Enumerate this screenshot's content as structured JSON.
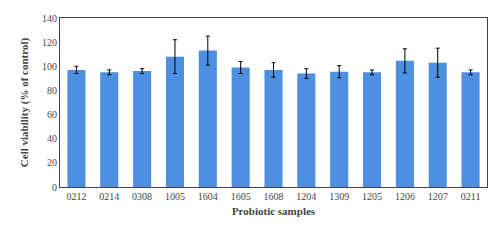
{
  "chart_data": {
    "type": "bar",
    "categories": [
      "0212",
      "0214",
      "0308",
      "1005",
      "1604",
      "1605",
      "1608",
      "1204",
      "1309",
      "1205",
      "1206",
      "1207",
      "0211"
    ],
    "values": [
      97,
      95,
      96,
      108,
      113,
      99,
      97,
      94,
      95.5,
      95,
      104.5,
      103,
      95
    ],
    "errors": [
      3,
      2,
      2,
      14,
      12,
      5,
      6,
      4,
      5,
      2,
      10,
      12,
      2
    ],
    "color": "#4d8fe0",
    "xlabel": "Probiotic samples",
    "ylabel": "Cell viability (% of control)",
    "ylim": [
      0,
      140
    ],
    "yticks": [
      0,
      20,
      40,
      60,
      80,
      100,
      120,
      140
    ],
    "grid": false
  }
}
